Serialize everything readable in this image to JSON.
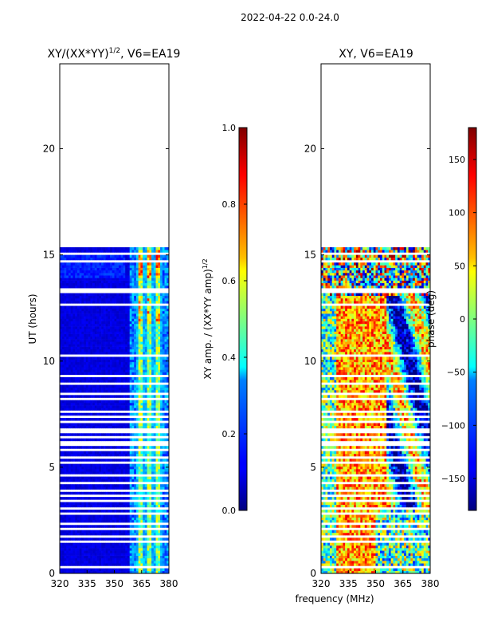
{
  "suptitle": "2022-04-22 0.0-24.0",
  "chart_data": [
    {
      "type": "heatmap",
      "title_main": "XY/(XX*YY)",
      "title_exponent": "1/2",
      "title_suffix": ", V6=EA19",
      "xlabel": "",
      "ylabel": "UT (hours)",
      "xlim": [
        320,
        380
      ],
      "ylim": [
        0,
        24
      ],
      "x_ticks": [
        "320",
        "335",
        "350",
        "365",
        "380"
      ],
      "y_ticks": [
        "0",
        "5",
        "10",
        "15",
        "20"
      ],
      "data_top_hours": 15.4,
      "colorbar": {
        "label_main": "XY amp. / (XX*YY amp)",
        "label_exponent": "1/2",
        "range": [
          0.0,
          1.0
        ],
        "ticks": [
          "0.0",
          "0.2",
          "0.4",
          "0.6",
          "0.8",
          "1.0"
        ]
      }
    },
    {
      "type": "heatmap",
      "title": "XY, V6=EA19",
      "xlabel": "frequency (MHz)",
      "ylabel": "",
      "xlim": [
        320,
        380
      ],
      "ylim": [
        0,
        24
      ],
      "x_ticks": [
        "320",
        "335",
        "350",
        "365",
        "380"
      ],
      "y_ticks": [
        "0",
        "5",
        "10",
        "15",
        "20"
      ],
      "data_top_hours": 15.4,
      "colorbar": {
        "label": "phase (deg)",
        "range": [
          -180,
          180
        ],
        "ticks": [
          "−150",
          "−100",
          "−50",
          "0",
          "50",
          "100",
          "150"
        ]
      }
    }
  ]
}
